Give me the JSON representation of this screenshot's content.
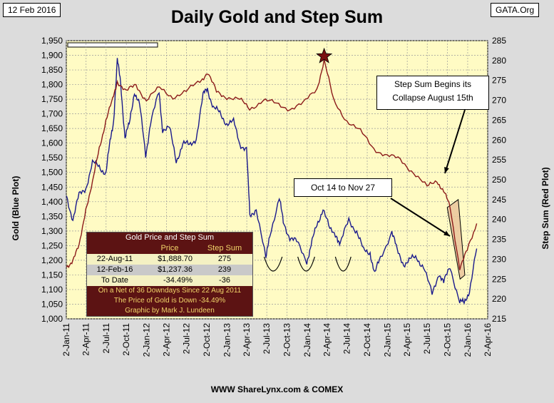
{
  "header": {
    "date": "12 Feb 2016",
    "source": "GATA.Org"
  },
  "footer": "WWW ShareLynx.com & COMEX",
  "annotations": {
    "step_sum_collapse": [
      "Step Sum Begins its",
      "Collapse August 15th"
    ],
    "oct_nov": "Oct 14 to Nov 27"
  },
  "table": {
    "title": "Gold Price and Step Sum",
    "columns": [
      "",
      "Price",
      "Step Sum"
    ],
    "rows": [
      [
        "22-Aug-11",
        "$1,888.70",
        "275"
      ],
      [
        "12-Feb-16",
        "$1,237.36",
        "239"
      ],
      [
        "To Date",
        "-34.49%",
        "-36"
      ]
    ],
    "notes": [
      "On a Net of 36 Downdays Since 22 Aug 2011",
      "The Price of Gold is Down -34.49%",
      "Graphic by Mark J. Lundeen"
    ]
  },
  "colors": {
    "gold_series": "#1a1a8c",
    "step_sum_series": "#8b1a1a",
    "plot_bg": "#fffbc4",
    "highlight": "#e8c29a"
  },
  "chart_data": {
    "type": "line",
    "title": "Daily Gold and Step Sum",
    "ylabel": "Gold   (Blue Plot)",
    "y2label": "Step Sum   (Red Plot)",
    "ylim": [
      1000,
      1950
    ],
    "y2lim": [
      215,
      285
    ],
    "xlim": [
      "2011-01-02",
      "2016-04-02"
    ],
    "yticks": [
      "1,000",
      "1,050",
      "1,100",
      "1,150",
      "1,200",
      "1,250",
      "1,300",
      "1,350",
      "1,400",
      "1,450",
      "1,500",
      "1,550",
      "1,600",
      "1,650",
      "1,700",
      "1,750",
      "1,800",
      "1,850",
      "1,900",
      "1,950"
    ],
    "y2ticks": [
      "215",
      "220",
      "225",
      "230",
      "235",
      "240",
      "245",
      "250",
      "255",
      "260",
      "265",
      "270",
      "275",
      "280",
      "285"
    ],
    "xticks": [
      "2-Jan-11",
      "2-Apr-11",
      "2-Jul-11",
      "2-Oct-11",
      "2-Jan-12",
      "2-Apr-12",
      "2-Jul-12",
      "2-Oct-12",
      "2-Jan-13",
      "2-Apr-13",
      "2-Jul-13",
      "2-Oct-13",
      "2-Jan-14",
      "2-Apr-14",
      "2-Jul-14",
      "2-Oct-14",
      "2-Jan-15",
      "2-Apr-15",
      "2-Jul-15",
      "2-Oct-15",
      "2-Jan-16",
      "2-Apr-16"
    ],
    "grid": true,
    "series": [
      {
        "name": "Gold",
        "axis": "left",
        "x": [
          "2011-01-03",
          "2011-02-01",
          "2011-03-01",
          "2011-04-01",
          "2011-05-01",
          "2011-06-01",
          "2011-07-01",
          "2011-07-20",
          "2011-08-05",
          "2011-08-22",
          "2011-09-06",
          "2011-09-26",
          "2011-10-15",
          "2011-11-08",
          "2011-12-01",
          "2011-12-29",
          "2012-01-20",
          "2012-02-28",
          "2012-03-15",
          "2012-04-15",
          "2012-05-16",
          "2012-06-15",
          "2012-07-15",
          "2012-08-15",
          "2012-09-15",
          "2012-10-05",
          "2012-11-01",
          "2012-12-01",
          "2013-01-01",
          "2013-02-01",
          "2013-03-01",
          "2013-04-01",
          "2013-04-16",
          "2013-05-15",
          "2013-06-28",
          "2013-07-15",
          "2013-08-28",
          "2013-09-15",
          "2013-10-15",
          "2013-11-15",
          "2013-12-31",
          "2014-01-20",
          "2014-02-15",
          "2014-03-15",
          "2014-04-15",
          "2014-05-15",
          "2014-06-01",
          "2014-07-10",
          "2014-08-15",
          "2014-09-15",
          "2014-10-15",
          "2014-11-05",
          "2014-12-01",
          "2015-01-22",
          "2015-02-15",
          "2015-03-17",
          "2015-04-15",
          "2015-05-15",
          "2015-06-15",
          "2015-07-24",
          "2015-08-24",
          "2015-09-15",
          "2015-10-14",
          "2015-11-27",
          "2015-12-17",
          "2016-01-10",
          "2016-02-12"
        ],
        "values": [
          1420,
          1340,
          1420,
          1450,
          1530,
          1520,
          1500,
          1600,
          1680,
          1880,
          1810,
          1620,
          1660,
          1780,
          1730,
          1560,
          1670,
          1770,
          1650,
          1650,
          1540,
          1600,
          1590,
          1620,
          1760,
          1790,
          1720,
          1700,
          1670,
          1670,
          1600,
          1580,
          1350,
          1380,
          1200,
          1290,
          1410,
          1330,
          1280,
          1260,
          1200,
          1250,
          1320,
          1380,
          1300,
          1290,
          1250,
          1340,
          1300,
          1230,
          1230,
          1150,
          1210,
          1300,
          1230,
          1190,
          1200,
          1210,
          1180,
          1080,
          1160,
          1120,
          1180,
          1060,
          1050,
          1100,
          1240
        ]
      },
      {
        "name": "Step Sum",
        "axis": "right",
        "x": [
          "2011-01-03",
          "2011-02-01",
          "2011-03-01",
          "2011-04-01",
          "2011-05-01",
          "2011-06-01",
          "2011-07-01",
          "2011-08-01",
          "2011-08-22",
          "2011-10-01",
          "2011-11-15",
          "2012-01-01",
          "2012-03-01",
          "2012-05-01",
          "2012-07-01",
          "2012-09-01",
          "2012-10-05",
          "2012-11-15",
          "2013-01-01",
          "2013-03-01",
          "2013-04-15",
          "2013-06-15",
          "2013-08-15",
          "2013-10-15",
          "2013-12-15",
          "2014-02-15",
          "2014-03-20",
          "2014-05-01",
          "2014-07-01",
          "2014-09-01",
          "2014-11-01",
          "2015-01-01",
          "2015-03-01",
          "2015-05-01",
          "2015-07-01",
          "2015-08-15",
          "2015-09-15",
          "2015-10-14",
          "2015-11-27",
          "2015-12-31",
          "2016-02-12"
        ],
        "values": [
          228,
          230,
          233,
          243,
          249,
          258,
          265,
          270,
          275,
          272,
          274,
          270,
          273,
          271,
          272,
          275,
          277,
          272,
          271,
          270,
          268,
          270,
          269,
          268,
          269,
          273,
          280,
          270,
          265,
          262,
          258,
          256,
          255,
          252,
          248,
          250,
          247,
          243,
          228,
          232,
          239
        ]
      }
    ]
  }
}
